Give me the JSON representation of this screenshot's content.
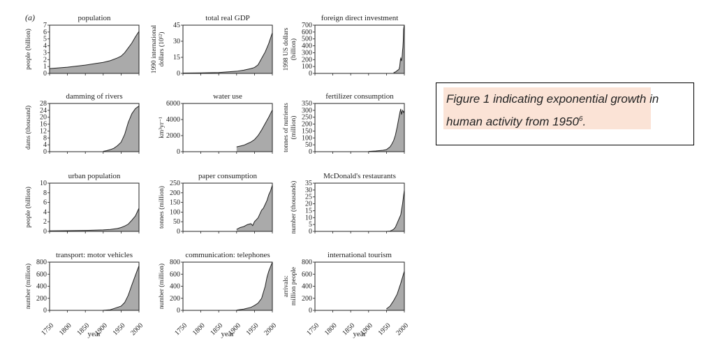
{
  "figure": {
    "panel_label": "(a)",
    "xlabel": "year",
    "xticks": [
      "1750",
      "1800",
      "1850",
      "1900",
      "1950",
      "2000"
    ]
  },
  "caption": {
    "text": "Figure 1 indicating exponential growth in human activity from 1950",
    "superscript": "6",
    "suffix": "."
  },
  "colors": {
    "fill": "#aaaaaa",
    "line": "#222222",
    "caption_highlight": "#fbe3d6"
  },
  "chart_data": [
    {
      "type": "area",
      "title": "population",
      "ylabel": [
        "people (billion)"
      ],
      "ylim": [
        0,
        7
      ],
      "yticks": [
        0,
        1,
        2,
        3,
        4,
        5,
        6,
        7
      ],
      "x": [
        1750,
        1800,
        1850,
        1880,
        1900,
        1920,
        1940,
        1950,
        1960,
        1970,
        1980,
        1990,
        2000
      ],
      "y": [
        0.7,
        0.9,
        1.2,
        1.45,
        1.6,
        1.85,
        2.25,
        2.5,
        3.0,
        3.7,
        4.4,
        5.3,
        6.1
      ]
    },
    {
      "type": "area",
      "title": "total real GDP",
      "ylabel": [
        "1990 international",
        "dollars (10¹²)"
      ],
      "ylim": [
        0,
        45
      ],
      "yticks": [
        0,
        15,
        30,
        45
      ],
      "x": [
        1750,
        1800,
        1850,
        1900,
        1920,
        1940,
        1950,
        1960,
        1970,
        1980,
        1990,
        2000
      ],
      "y": [
        0.3,
        0.5,
        0.8,
        2,
        3,
        4.5,
        5.5,
        8,
        14,
        20,
        28,
        38
      ]
    },
    {
      "type": "area",
      "title": "foreign direct investment",
      "ylabel": [
        "1998 US dollars",
        "(billion)"
      ],
      "ylim": [
        0,
        700
      ],
      "yticks": [
        0,
        100,
        200,
        300,
        400,
        500,
        600,
        700
      ],
      "x": [
        1970,
        1975,
        1980,
        1985,
        1987,
        1989,
        1990,
        1992,
        1994,
        1995,
        1996,
        1997,
        1998,
        1999,
        2000
      ],
      "y": [
        10,
        20,
        40,
        60,
        100,
        200,
        220,
        180,
        250,
        330,
        380,
        470,
        640,
        680,
        700
      ]
    },
    {
      "type": "area",
      "title": "damming of rivers",
      "ylabel": [
        "dams (thousand)"
      ],
      "ylim": [
        0,
        28
      ],
      "yticks": [
        0,
        4,
        8,
        12,
        16,
        20,
        24,
        28
      ],
      "x": [
        1900,
        1910,
        1920,
        1930,
        1940,
        1950,
        1960,
        1970,
        1980,
        1990,
        2000
      ],
      "y": [
        0.2,
        0.6,
        1.2,
        2,
        3.5,
        5.5,
        10,
        17,
        22,
        25,
        26.5
      ]
    },
    {
      "type": "area",
      "title": "water use",
      "ylabel": [
        "km³yr⁻¹"
      ],
      "ylim": [
        0,
        6000
      ],
      "yticks": [
        0,
        2000,
        4000,
        6000
      ],
      "x": [
        1900,
        1910,
        1920,
        1930,
        1940,
        1950,
        1960,
        1970,
        1980,
        1990,
        2000
      ],
      "y": [
        600,
        700,
        800,
        1000,
        1200,
        1500,
        2000,
        2700,
        3500,
        4300,
        5200
      ]
    },
    {
      "type": "area",
      "title": "fertilizer consumption",
      "ylabel": [
        "tonnes of nutrients",
        "(million)"
      ],
      "ylim": [
        0,
        350
      ],
      "yticks": [
        0,
        50,
        100,
        150,
        200,
        250,
        300,
        350
      ],
      "x": [
        1900,
        1920,
        1940,
        1950,
        1955,
        1960,
        1965,
        1970,
        1975,
        1980,
        1985,
        1988,
        1990,
        1992,
        1995,
        1998,
        2000
      ],
      "y": [
        2,
        5,
        10,
        15,
        25,
        35,
        55,
        80,
        120,
        180,
        250,
        290,
        310,
        270,
        300,
        285,
        300
      ]
    },
    {
      "type": "area",
      "title": "urban population",
      "ylabel": [
        "people (billion)"
      ],
      "ylim": [
        0,
        10
      ],
      "yticks": [
        0,
        2,
        4,
        6,
        8,
        10
      ],
      "x": [
        1750,
        1800,
        1850,
        1900,
        1920,
        1940,
        1950,
        1960,
        1970,
        1980,
        1990,
        2000
      ],
      "y": [
        0.1,
        0.15,
        0.2,
        0.3,
        0.4,
        0.6,
        0.8,
        1.1,
        1.5,
        2.3,
        3.2,
        4.8
      ]
    },
    {
      "type": "area",
      "title": "paper consumption",
      "ylabel": [
        "tonnes (million)"
      ],
      "ylim": [
        0,
        250
      ],
      "yticks": [
        0,
        50,
        100,
        150,
        200,
        250
      ],
      "x": [
        1900,
        1910,
        1920,
        1930,
        1940,
        1945,
        1950,
        1955,
        1960,
        1965,
        1970,
        1975,
        1980,
        1985,
        1990,
        1995,
        2000
      ],
      "y": [
        10,
        20,
        25,
        35,
        40,
        30,
        50,
        60,
        70,
        90,
        110,
        120,
        140,
        160,
        190,
        210,
        240
      ]
    },
    {
      "type": "area",
      "title": "McDonald's restaurants",
      "ylabel": [
        "number (thousands)"
      ],
      "ylim": [
        0,
        35
      ],
      "yticks": [
        0,
        5,
        10,
        15,
        20,
        25,
        30,
        35
      ],
      "x": [
        1950,
        1955,
        1960,
        1965,
        1970,
        1975,
        1980,
        1985,
        1990,
        1995,
        2000
      ],
      "y": [
        0,
        0.1,
        0.2,
        0.8,
        1.5,
        3,
        6,
        9,
        12,
        20,
        30
      ]
    },
    {
      "type": "area",
      "title": "transport: motor vehicles",
      "ylabel": [
        "number (million)"
      ],
      "ylim": [
        0,
        800
      ],
      "yticks": [
        0,
        200,
        400,
        600,
        800
      ],
      "x": [
        1900,
        1920,
        1930,
        1940,
        1950,
        1960,
        1970,
        1980,
        1990,
        2000
      ],
      "y": [
        1,
        10,
        30,
        50,
        70,
        130,
        250,
        420,
        580,
        740
      ]
    },
    {
      "type": "area",
      "title": "communication: telephones",
      "ylabel": [
        "number (million)"
      ],
      "ylim": [
        0,
        800
      ],
      "yticks": [
        0,
        200,
        400,
        600,
        800
      ],
      "x": [
        1900,
        1920,
        1940,
        1950,
        1960,
        1970,
        1975,
        1980,
        1985,
        1990,
        2000
      ],
      "y": [
        5,
        20,
        50,
        80,
        120,
        200,
        300,
        400,
        550,
        650,
        800
      ]
    },
    {
      "type": "area",
      "title": "international tourism",
      "ylabel": [
        "arrivals:",
        "million people"
      ],
      "ylim": [
        0,
        800
      ],
      "yticks": [
        0,
        200,
        400,
        600,
        800
      ],
      "x": [
        1950,
        1960,
        1970,
        1980,
        1990,
        2000
      ],
      "y": [
        25,
        70,
        160,
        270,
        450,
        650
      ]
    }
  ]
}
